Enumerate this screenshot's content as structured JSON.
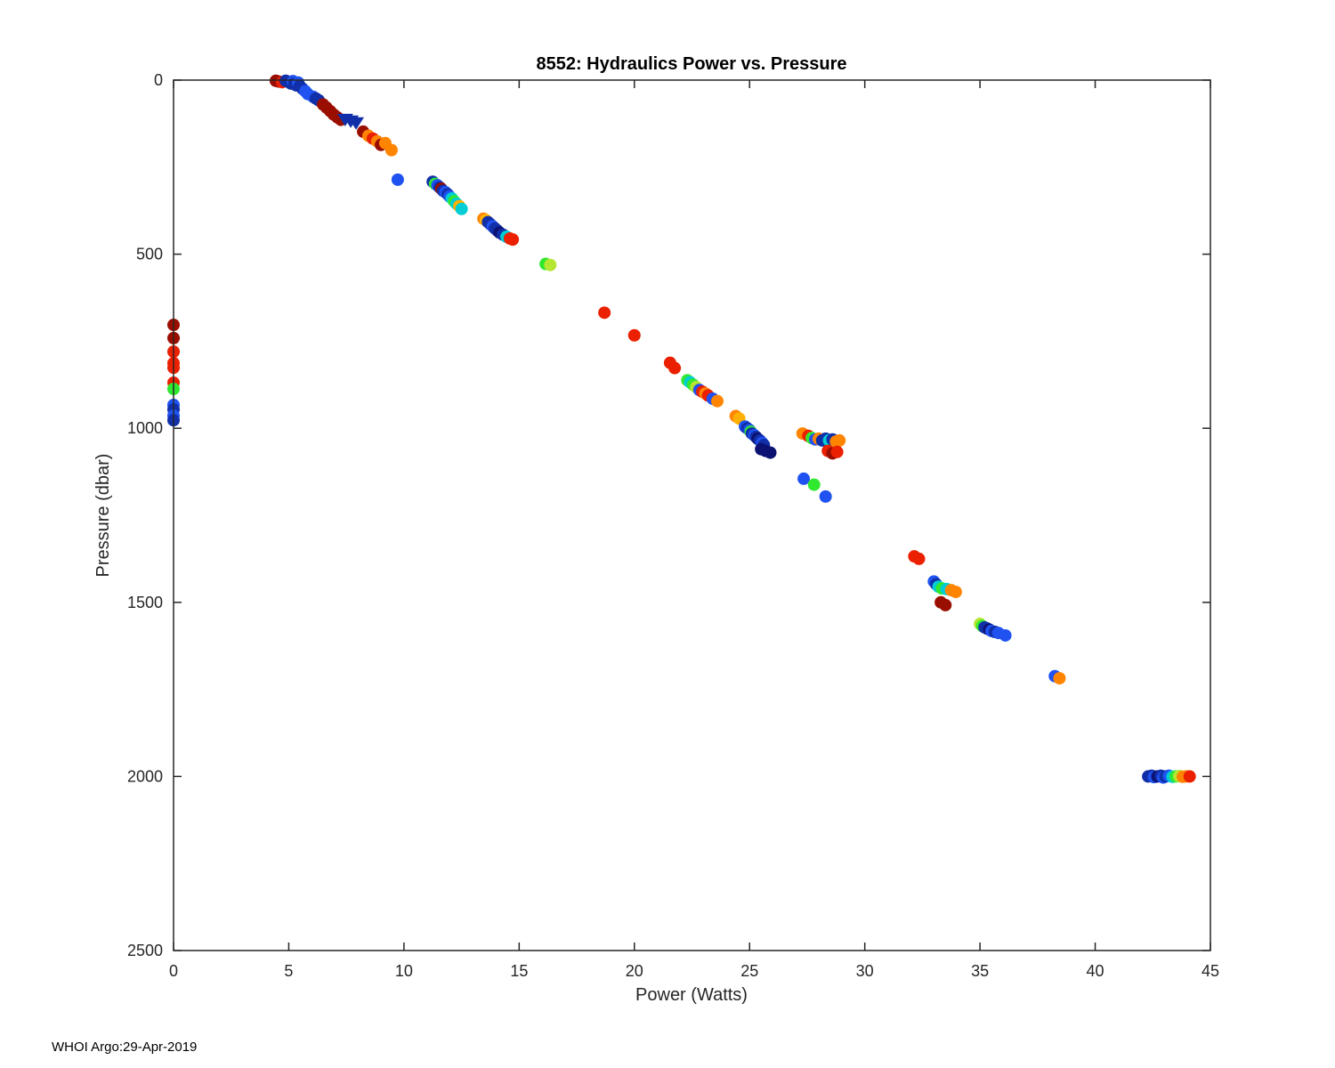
{
  "footer": "WHOI Argo:29-Apr-2019",
  "chart_data": {
    "type": "scatter",
    "title": "8552: Hydraulics Power vs. Pressure",
    "xlabel": "Power (Watts)",
    "ylabel": "Pressure (dbar)",
    "xlim": [
      0,
      45
    ],
    "ylim": [
      0,
      2500
    ],
    "y_inverted": true,
    "grid": false,
    "legend": "none",
    "x_ticks": [
      0,
      5,
      10,
      15,
      20,
      25,
      30,
      35,
      40,
      45
    ],
    "y_ticks": [
      0,
      500,
      1000,
      1500,
      2000,
      2500
    ],
    "palette": {
      "dr": "#9a0e00",
      "r": "#ea2000",
      "o": "#ff8400",
      "a": "#ffb000",
      "yg": "#b4e632",
      "g": "#30e830",
      "c": "#00cdd4",
      "b": "#1f52f0",
      "n": "#102fa8",
      "dn": "#0b1272"
    },
    "marker_radius": 7,
    "points": [
      [
        0,
        703,
        "dr"
      ],
      [
        0,
        741,
        "dr"
      ],
      [
        0,
        780,
        "r"
      ],
      [
        0,
        813,
        "r"
      ],
      [
        0,
        826,
        "r"
      ],
      [
        0,
        869,
        "r"
      ],
      [
        0,
        887,
        "g"
      ],
      [
        0,
        933,
        "b"
      ],
      [
        0,
        946,
        "n"
      ],
      [
        0,
        964,
        "b"
      ],
      [
        0,
        977,
        "n"
      ],
      [
        4.44,
        2,
        "dr"
      ],
      [
        4.56,
        4,
        "dr"
      ],
      [
        4.71,
        6,
        "r"
      ],
      [
        4.87,
        2,
        "n"
      ],
      [
        4.98,
        5,
        "n"
      ],
      [
        5.1,
        10,
        "n"
      ],
      [
        5.18,
        3,
        "b"
      ],
      [
        5.25,
        10,
        "n"
      ],
      [
        5.33,
        15,
        "n"
      ],
      [
        5.41,
        7,
        "b"
      ],
      [
        5.48,
        17,
        "n"
      ],
      [
        5.6,
        25,
        "n"
      ],
      [
        5.72,
        32,
        "b"
      ],
      [
        5.83,
        40,
        "b"
      ],
      [
        6.06,
        48,
        "b"
      ],
      [
        6.18,
        53,
        "n"
      ],
      [
        6.3,
        58,
        "n"
      ],
      [
        6.49,
        70,
        "dr"
      ],
      [
        6.64,
        79,
        "dr"
      ],
      [
        6.8,
        89,
        "dr"
      ],
      [
        6.95,
        99,
        "dr"
      ],
      [
        7.11,
        107,
        "dr"
      ],
      [
        7.26,
        114,
        "dr"
      ],
      [
        7.45,
        112,
        "n",
        "t"
      ],
      [
        7.69,
        117,
        "n",
        "t"
      ],
      [
        7.92,
        122,
        "n",
        "t"
      ],
      [
        8.23,
        148,
        "dr"
      ],
      [
        8.46,
        160,
        "o"
      ],
      [
        8.65,
        168,
        "r"
      ],
      [
        8.84,
        176,
        "o"
      ],
      [
        9.0,
        186,
        "dr"
      ],
      [
        9.19,
        181,
        "o"
      ],
      [
        9.46,
        201,
        "o"
      ],
      [
        9.73,
        286,
        "b"
      ],
      [
        11.25,
        292,
        "n"
      ],
      [
        11.35,
        298,
        "g"
      ],
      [
        11.45,
        302,
        "b"
      ],
      [
        11.55,
        308,
        "n"
      ],
      [
        11.62,
        312,
        "dr"
      ],
      [
        11.7,
        318,
        "n"
      ],
      [
        11.8,
        322,
        "b"
      ],
      [
        11.9,
        328,
        "n"
      ],
      [
        11.98,
        334,
        "b"
      ],
      [
        12.08,
        340,
        "c"
      ],
      [
        12.18,
        348,
        "g"
      ],
      [
        12.28,
        355,
        "c"
      ],
      [
        12.4,
        362,
        "a"
      ],
      [
        12.5,
        370,
        "c"
      ],
      [
        13.45,
        398,
        "o"
      ],
      [
        13.55,
        402,
        "a"
      ],
      [
        13.65,
        408,
        "n"
      ],
      [
        13.75,
        414,
        "n"
      ],
      [
        13.85,
        420,
        "b"
      ],
      [
        13.95,
        426,
        "n"
      ],
      [
        14.05,
        432,
        "n"
      ],
      [
        14.15,
        438,
        "dn"
      ],
      [
        14.3,
        444,
        "n"
      ],
      [
        14.45,
        450,
        "c"
      ],
      [
        14.6,
        455,
        "r"
      ],
      [
        14.72,
        458,
        "r"
      ],
      [
        16.15,
        528,
        "g"
      ],
      [
        16.35,
        531,
        "yg"
      ],
      [
        18.7,
        668,
        "r"
      ],
      [
        20.0,
        733,
        "r"
      ],
      [
        21.55,
        812,
        "r"
      ],
      [
        21.75,
        827,
        "r"
      ],
      [
        22.3,
        862,
        "g"
      ],
      [
        22.42,
        868,
        "c"
      ],
      [
        22.55,
        875,
        "g"
      ],
      [
        22.68,
        882,
        "yg"
      ],
      [
        22.82,
        890,
        "b"
      ],
      [
        22.95,
        895,
        "r"
      ],
      [
        23.08,
        900,
        "o"
      ],
      [
        23.2,
        906,
        "r"
      ],
      [
        23.4,
        915,
        "b"
      ],
      [
        23.6,
        922,
        "o"
      ],
      [
        24.4,
        965,
        "o"
      ],
      [
        24.55,
        972,
        "a"
      ],
      [
        24.8,
        995,
        "b"
      ],
      [
        24.9,
        1000,
        "n"
      ],
      [
        25.0,
        1005,
        "b"
      ],
      [
        25.05,
        1010,
        "g"
      ],
      [
        25.1,
        1015,
        "n"
      ],
      [
        25.2,
        1020,
        "b"
      ],
      [
        25.28,
        1025,
        "n"
      ],
      [
        25.35,
        1030,
        "dn"
      ],
      [
        25.45,
        1035,
        "n"
      ],
      [
        25.55,
        1042,
        "b"
      ],
      [
        25.62,
        1048,
        "n"
      ],
      [
        25.5,
        1060,
        "dn"
      ],
      [
        25.7,
        1065,
        "dn"
      ],
      [
        25.9,
        1070,
        "dn"
      ],
      [
        27.3,
        1015,
        "o"
      ],
      [
        27.55,
        1022,
        "r"
      ],
      [
        27.7,
        1028,
        "g"
      ],
      [
        27.85,
        1032,
        "b"
      ],
      [
        28.0,
        1030,
        "o"
      ],
      [
        28.15,
        1035,
        "n"
      ],
      [
        28.3,
        1030,
        "n"
      ],
      [
        28.45,
        1035,
        "c"
      ],
      [
        28.6,
        1032,
        "n"
      ],
      [
        28.75,
        1038,
        "o"
      ],
      [
        28.9,
        1035,
        "o"
      ],
      [
        28.4,
        1065,
        "r"
      ],
      [
        28.6,
        1072,
        "dr"
      ],
      [
        28.8,
        1068,
        "r"
      ],
      [
        27.35,
        1145,
        "b"
      ],
      [
        27.8,
        1162,
        "g"
      ],
      [
        28.3,
        1196,
        "b"
      ],
      [
        32.15,
        1368,
        "r"
      ],
      [
        32.35,
        1375,
        "r"
      ],
      [
        33.0,
        1440,
        "b"
      ],
      [
        33.1,
        1448,
        "n"
      ],
      [
        33.2,
        1455,
        "c"
      ],
      [
        33.35,
        1460,
        "g"
      ],
      [
        33.55,
        1462,
        "c"
      ],
      [
        33.75,
        1465,
        "o"
      ],
      [
        33.95,
        1470,
        "o"
      ],
      [
        33.3,
        1500,
        "dr"
      ],
      [
        33.5,
        1508,
        "dr"
      ],
      [
        35.0,
        1562,
        "yg"
      ],
      [
        35.1,
        1568,
        "g"
      ],
      [
        35.2,
        1572,
        "n"
      ],
      [
        35.3,
        1575,
        "n"
      ],
      [
        35.4,
        1578,
        "dn"
      ],
      [
        35.5,
        1582,
        "b"
      ],
      [
        35.65,
        1585,
        "n"
      ],
      [
        35.8,
        1588,
        "b"
      ],
      [
        36.1,
        1595,
        "b"
      ],
      [
        38.25,
        1712,
        "b"
      ],
      [
        38.45,
        1718,
        "o"
      ],
      [
        42.3,
        2000,
        "n"
      ],
      [
        42.45,
        1998,
        "n"
      ],
      [
        42.55,
        2002,
        "b"
      ],
      [
        42.7,
        2000,
        "dn"
      ],
      [
        42.85,
        1998,
        "n"
      ],
      [
        42.95,
        2003,
        "b"
      ],
      [
        43.05,
        2000,
        "n"
      ],
      [
        43.2,
        1998,
        "b"
      ],
      [
        43.35,
        2001,
        "c"
      ],
      [
        43.5,
        2000,
        "g"
      ],
      [
        43.65,
        1999,
        "yg"
      ],
      [
        43.8,
        2001,
        "o"
      ],
      [
        43.95,
        2000,
        "o"
      ],
      [
        44.1,
        2000,
        "r"
      ]
    ]
  }
}
